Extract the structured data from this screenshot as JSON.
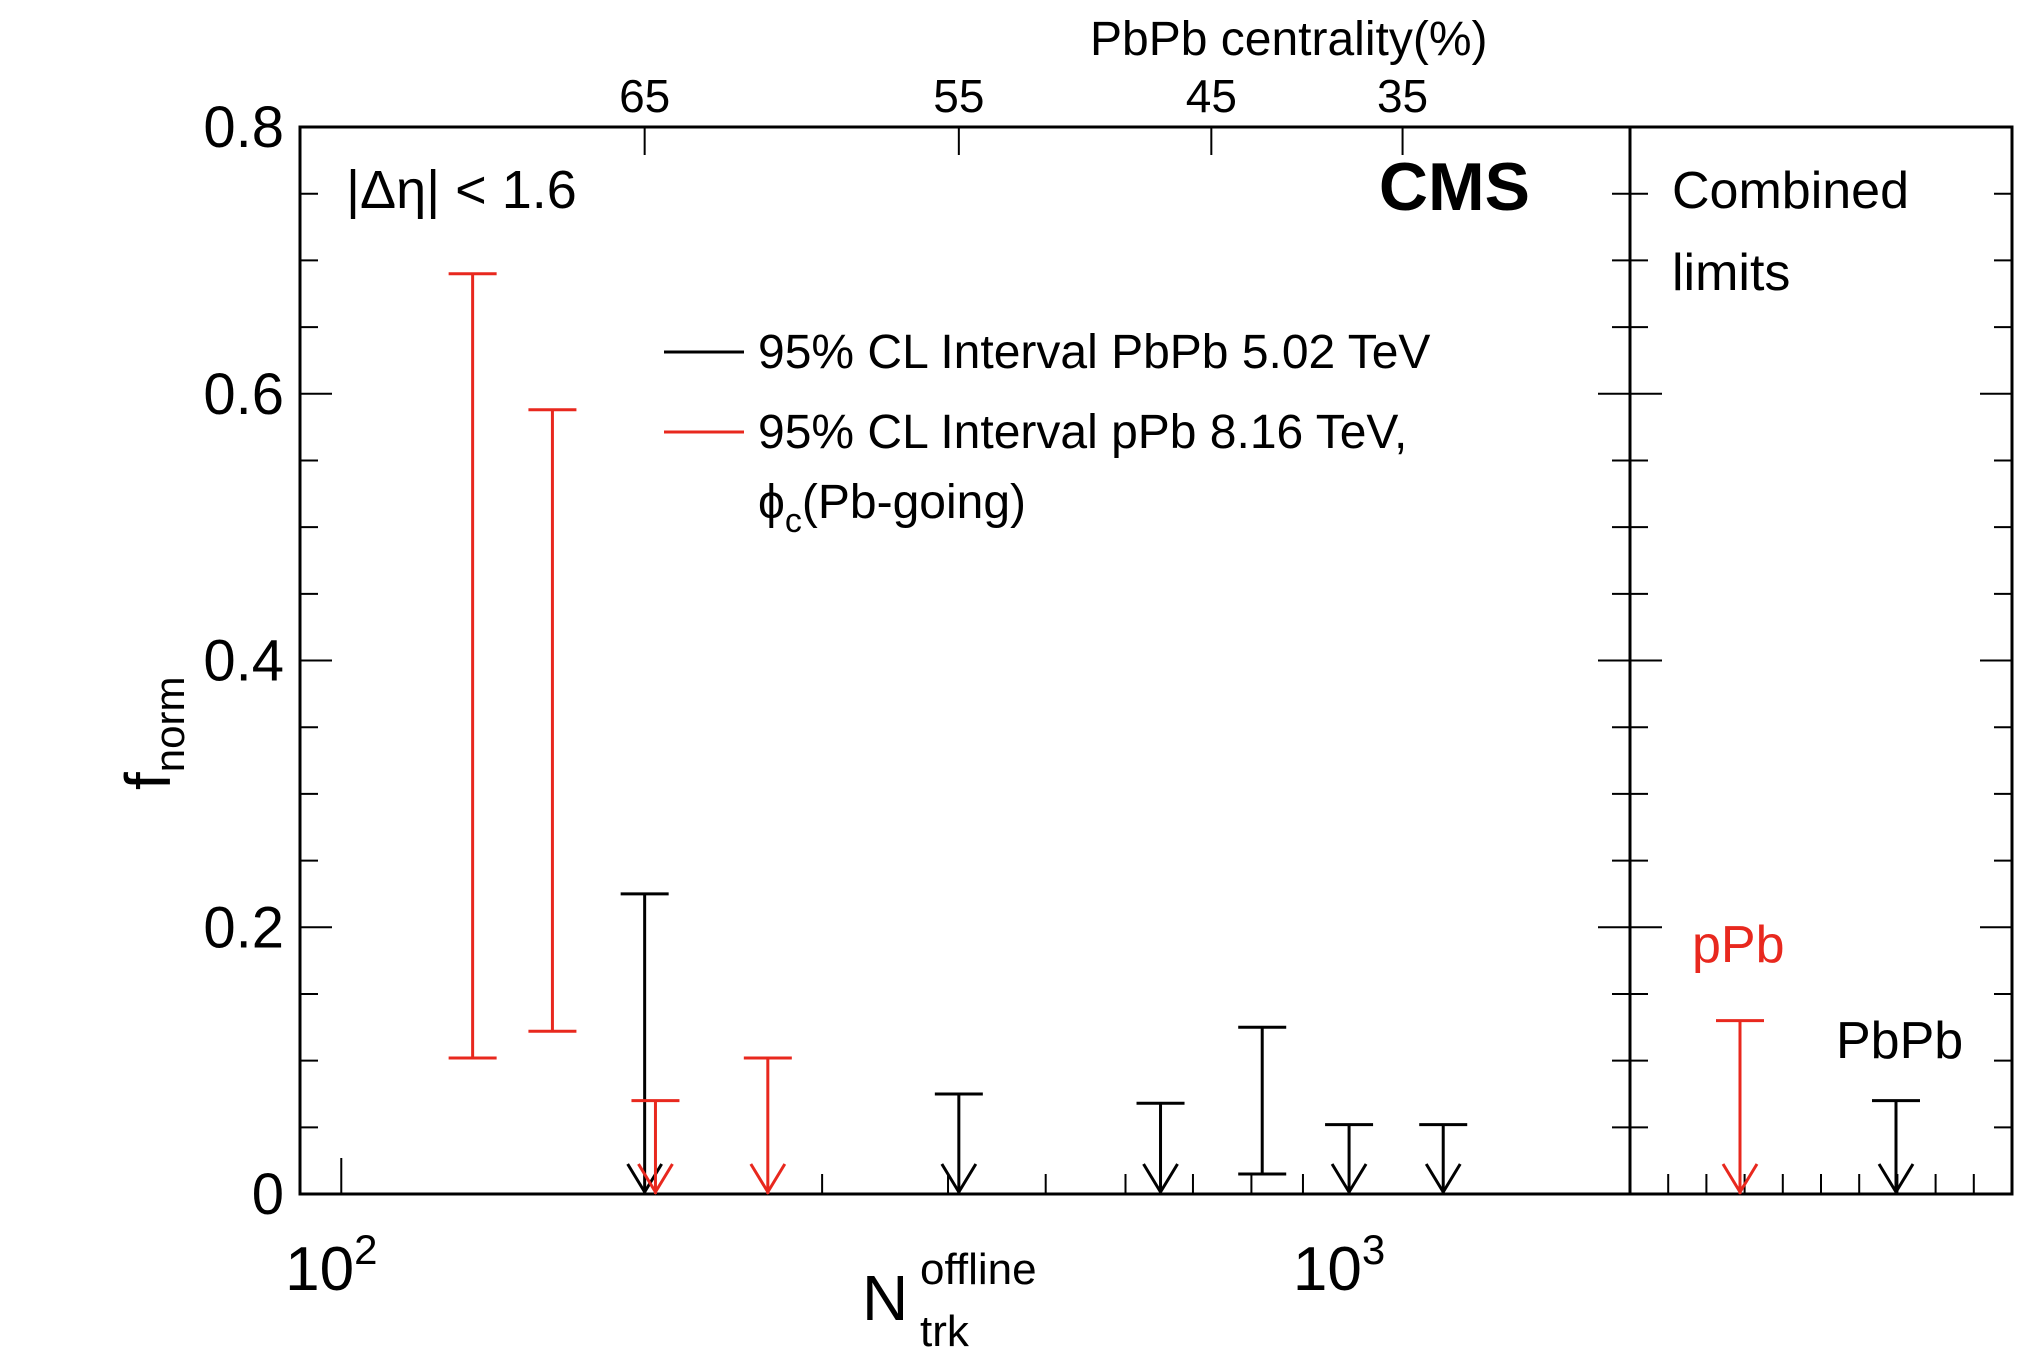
{
  "colors": {
    "pbpb": "#000000",
    "ppb": "#e8281e",
    "frame": "#000000"
  },
  "chart_data": {
    "type": "scatter",
    "title": "",
    "experiment_label": "CMS",
    "selection_label": "|Δη| < 1.6",
    "ylabel": {
      "main": "f",
      "sub": "norm"
    },
    "xlabel": {
      "main": "N",
      "sub": "trk",
      "sup": "offline"
    },
    "xscale": "log",
    "xlim": [
      91,
      1900
    ],
    "ylim": [
      0,
      0.8
    ],
    "y_ticks": [
      {
        "value": 0,
        "label": "0"
      },
      {
        "value": 0.2,
        "label": "0.2"
      },
      {
        "value": 0.4,
        "label": "0.4"
      },
      {
        "value": 0.6,
        "label": "0.6"
      },
      {
        "value": 0.8,
        "label": "0.8"
      }
    ],
    "x_ticks": [
      {
        "value": 100,
        "base": "10",
        "exp": "2"
      },
      {
        "value": 1000,
        "base": "10",
        "exp": "3"
      }
    ],
    "top_axis": {
      "label": "PbPb centrality(%)",
      "ticks": [
        {
          "label": "65",
          "x": 200
        },
        {
          "label": "55",
          "x": 410
        },
        {
          "label": "45",
          "x": 730
        },
        {
          "label": "35",
          "x": 1130
        }
      ]
    },
    "legend": [
      {
        "label": "95% CL Interval PbPb 5.02 TeV",
        "color_key": "pbpb"
      },
      {
        "label": "95% CL Interval pPb 8.16 TeV,",
        "color_key": "ppb",
        "second_line": {
          "main": "ϕ",
          "sub": "c",
          "rest": "(Pb-going)"
        }
      }
    ],
    "series": [
      {
        "name": "PbPb 5.02 TeV",
        "color_key": "pbpb",
        "points": [
          {
            "x": 200,
            "low": 0,
            "high": 0.225,
            "upper_limit": true
          },
          {
            "x": 410,
            "low": 0,
            "high": 0.075,
            "upper_limit": true
          },
          {
            "x": 650,
            "low": 0,
            "high": 0.068,
            "upper_limit": true
          },
          {
            "x": 820,
            "low": 0.015,
            "high": 0.125,
            "upper_limit": false
          },
          {
            "x": 1000,
            "low": 0,
            "high": 0.052,
            "upper_limit": true
          },
          {
            "x": 1240,
            "low": 0,
            "high": 0.052,
            "upper_limit": true
          }
        ]
      },
      {
        "name": "pPb 8.16 TeV, φc(Pb-going)",
        "color_key": "ppb",
        "points": [
          {
            "x": 135,
            "low": 0.102,
            "high": 0.69,
            "upper_limit": false
          },
          {
            "x": 162,
            "low": 0.122,
            "high": 0.588,
            "upper_limit": false
          },
          {
            "x": 205,
            "low": 0,
            "high": 0.07,
            "upper_limit": true
          },
          {
            "x": 265,
            "low": 0,
            "high": 0.102,
            "upper_limit": true
          }
        ]
      }
    ],
    "combined_panel": {
      "title_lines": [
        "Combined",
        "limits"
      ],
      "entries": [
        {
          "label": "pPb",
          "color_key": "ppb",
          "high": 0.13,
          "low": 0,
          "upper_limit": true
        },
        {
          "label": "PbPb",
          "color_key": "pbpb",
          "high": 0.07,
          "low": 0,
          "upper_limit": true
        }
      ]
    }
  }
}
